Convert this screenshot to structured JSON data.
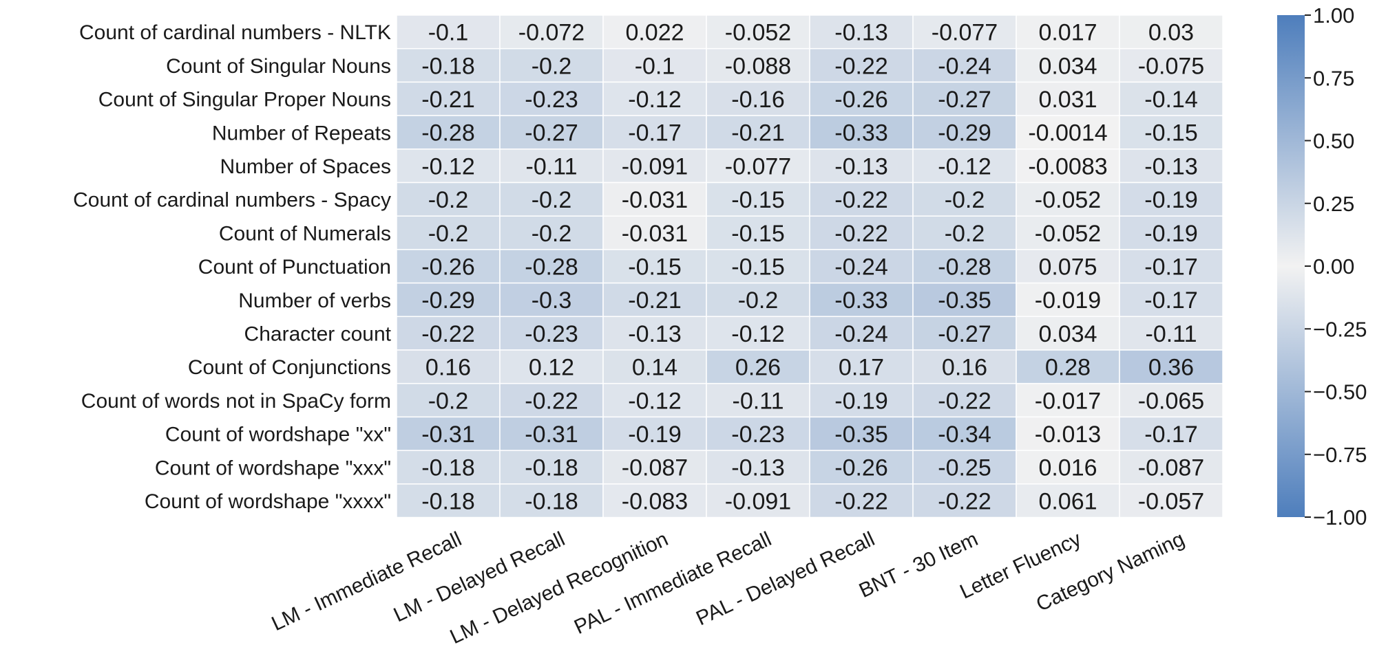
{
  "chart_data": {
    "type": "heatmap",
    "rows": [
      "Count of cardinal numbers - NLTK",
      "Count of Singular Nouns",
      "Count of Singular Proper Nouns",
      "Number of Repeats",
      "Number of Spaces",
      "Count of cardinal numbers - Spacy",
      "Count of Numerals",
      "Count of Punctuation",
      "Number of verbs",
      "Character count",
      "Count of Conjunctions",
      "Count of words not in SpaCy form",
      "Count of wordshape \"xx\"",
      "Count of wordshape \"xxx\"",
      "Count of wordshape \"xxxx\""
    ],
    "columns": [
      "LM - Immediate Recall",
      "LM - Delayed Recall",
      "LM - Delayed Recognition",
      "PAL - Immediate Recall",
      "PAL - Delayed Recall",
      "BNT - 30 Item",
      "Letter Fluency",
      "Category Naming"
    ],
    "values": [
      [
        "-0.1",
        "-0.072",
        "0.022",
        "-0.052",
        "-0.13",
        "-0.077",
        "0.017",
        "0.03"
      ],
      [
        "-0.18",
        "-0.2",
        "-0.1",
        "-0.088",
        "-0.22",
        "-0.24",
        "0.034",
        "-0.075"
      ],
      [
        "-0.21",
        "-0.23",
        "-0.12",
        "-0.16",
        "-0.26",
        "-0.27",
        "0.031",
        "-0.14"
      ],
      [
        "-0.28",
        "-0.27",
        "-0.17",
        "-0.21",
        "-0.33",
        "-0.29",
        "-0.0014",
        "-0.15"
      ],
      [
        "-0.12",
        "-0.11",
        "-0.091",
        "-0.077",
        "-0.13",
        "-0.12",
        "-0.0083",
        "-0.13"
      ],
      [
        "-0.2",
        "-0.2",
        "-0.031",
        "-0.15",
        "-0.22",
        "-0.2",
        "-0.052",
        "-0.19"
      ],
      [
        "-0.2",
        "-0.2",
        "-0.031",
        "-0.15",
        "-0.22",
        "-0.2",
        "-0.052",
        "-0.19"
      ],
      [
        "-0.26",
        "-0.28",
        "-0.15",
        "-0.15",
        "-0.24",
        "-0.28",
        "0.075",
        "-0.17"
      ],
      [
        "-0.29",
        "-0.3",
        "-0.21",
        "-0.2",
        "-0.33",
        "-0.35",
        "-0.019",
        "-0.17"
      ],
      [
        "-0.22",
        "-0.23",
        "-0.13",
        "-0.12",
        "-0.24",
        "-0.27",
        "0.034",
        "-0.11"
      ],
      [
        "0.16",
        "0.12",
        "0.14",
        "0.26",
        "0.17",
        "0.16",
        "0.28",
        "0.36"
      ],
      [
        "-0.2",
        "-0.22",
        "-0.12",
        "-0.11",
        "-0.19",
        "-0.22",
        "-0.017",
        "-0.065"
      ],
      [
        "-0.31",
        "-0.31",
        "-0.19",
        "-0.23",
        "-0.35",
        "-0.34",
        "-0.013",
        "-0.17"
      ],
      [
        "-0.18",
        "-0.18",
        "-0.087",
        "-0.13",
        "-0.26",
        "-0.25",
        "0.016",
        "-0.087"
      ],
      [
        "-0.18",
        "-0.18",
        "-0.083",
        "-0.091",
        "-0.22",
        "-0.22",
        "0.061",
        "-0.057"
      ]
    ],
    "colorbar": {
      "range": [
        -1.0,
        1.0
      ],
      "ticks": [
        "1.00",
        "0.75",
        "0.50",
        "0.25",
        "0.00",
        "−0.25",
        "−0.50",
        "−0.75",
        "−1.00"
      ],
      "tick_values": [
        1.0,
        0.75,
        0.5,
        0.25,
        0.0,
        -0.25,
        -0.5,
        -0.75,
        -1.0
      ]
    },
    "colors": {
      "extreme": "#4e7ebc",
      "center": "#f2f2f2"
    },
    "grid": true,
    "legend": "colorbar right",
    "title": "",
    "xlabel": "",
    "ylabel": ""
  }
}
